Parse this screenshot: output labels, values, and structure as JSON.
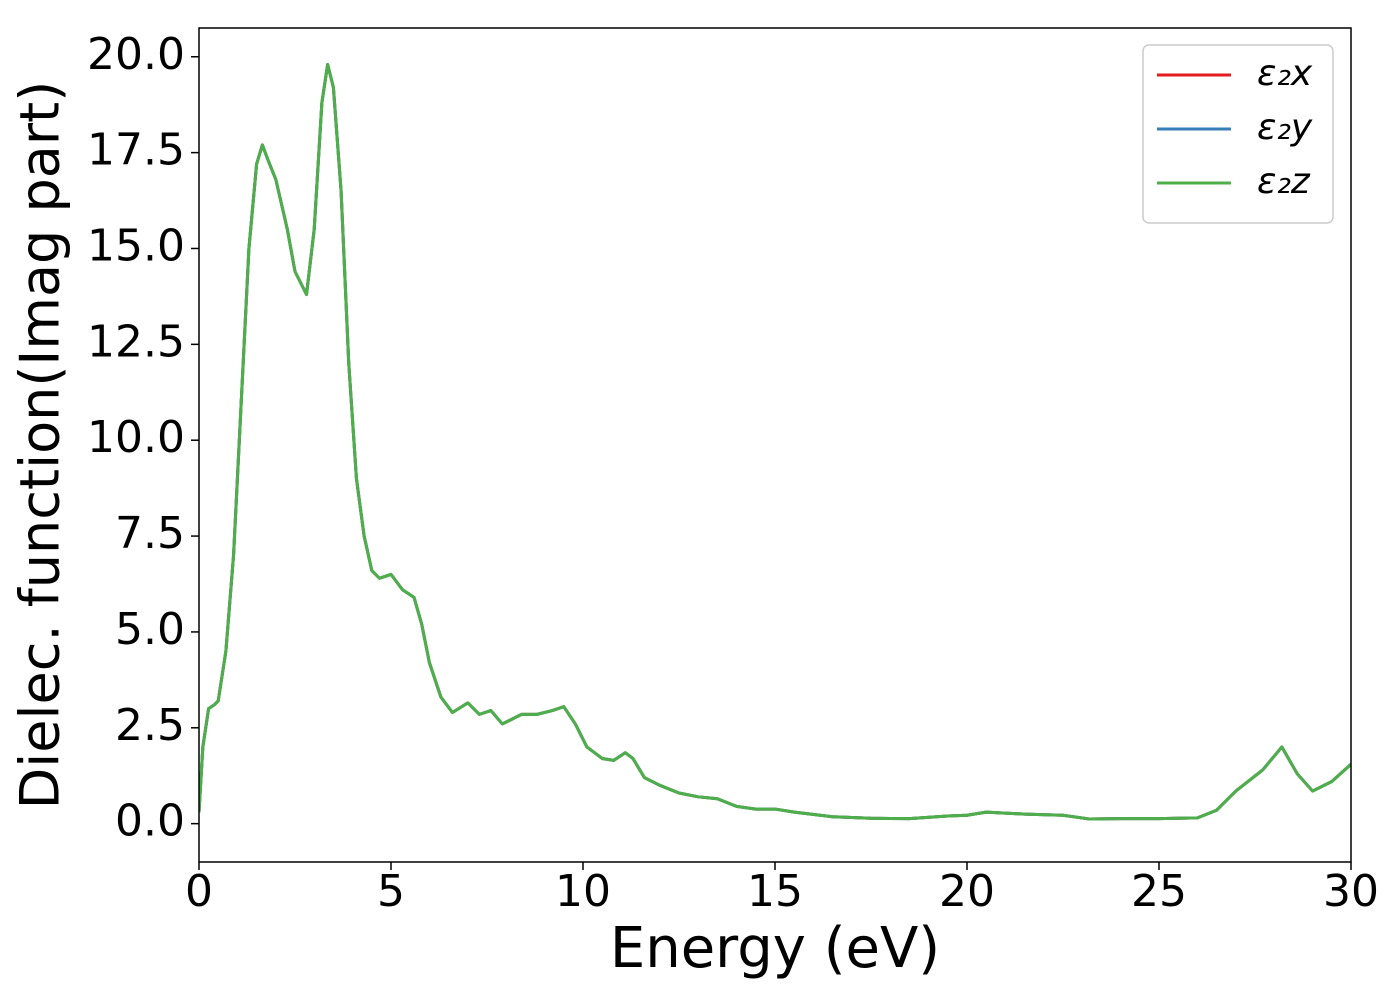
{
  "chart_data": {
    "type": "line",
    "xlabel": "Energy (eV)",
    "ylabel": "Dielec. function(Imag part)",
    "x": [
      0,
      0.1,
      0.25,
      0.4,
      0.5,
      0.7,
      0.9,
      1.1,
      1.3,
      1.5,
      1.65,
      1.8,
      2.0,
      2.3,
      2.5,
      2.8,
      3.0,
      3.2,
      3.35,
      3.5,
      3.7,
      3.9,
      4.1,
      4.3,
      4.5,
      4.7,
      5.0,
      5.3,
      5.6,
      5.8,
      6.0,
      6.3,
      6.6,
      7.0,
      7.3,
      7.6,
      7.9,
      8.4,
      8.8,
      9.2,
      9.5,
      9.8,
      10.1,
      10.5,
      10.8,
      11.1,
      11.3,
      11.6,
      12.0,
      12.5,
      13.0,
      13.5,
      14.0,
      14.5,
      15.0,
      15.5,
      16.5,
      17.5,
      18.5,
      19.5,
      20.0,
      20.5,
      21.5,
      22.5,
      23.2,
      24,
      25,
      26,
      26.5,
      27,
      27.7,
      28.2,
      28.6,
      29,
      29.5,
      30
    ],
    "series": [
      {
        "name": "ε₂x",
        "color": "#e41a1c",
        "values": [
          0.3,
          2.0,
          3.0,
          3.1,
          3.2,
          4.5,
          7,
          11,
          15,
          17.2,
          17.7,
          17.3,
          16.8,
          15.5,
          14.4,
          13.8,
          15.5,
          18.8,
          19.8,
          19.2,
          16.5,
          12,
          9,
          7.5,
          6.6,
          6.4,
          6.5,
          6.1,
          5.9,
          5.2,
          4.2,
          3.3,
          2.9,
          3.15,
          2.85,
          2.95,
          2.6,
          2.85,
          2.85,
          2.95,
          3.05,
          2.6,
          2.0,
          1.7,
          1.65,
          1.85,
          1.7,
          1.2,
          1.0,
          0.8,
          0.7,
          0.65,
          0.45,
          0.38,
          0.38,
          0.3,
          0.18,
          0.14,
          0.13,
          0.2,
          0.22,
          0.3,
          0.25,
          0.22,
          0.12,
          0.13,
          0.13,
          0.15,
          0.35,
          0.85,
          1.4,
          2.0,
          1.3,
          0.85,
          1.1,
          1.55
        ]
      },
      {
        "name": "ε₂y",
        "color": "#377eb8",
        "values": [
          0.3,
          2.0,
          3.0,
          3.1,
          3.2,
          4.5,
          7,
          11,
          15,
          17.2,
          17.7,
          17.3,
          16.8,
          15.5,
          14.4,
          13.8,
          15.5,
          18.8,
          19.8,
          19.2,
          16.5,
          12,
          9,
          7.5,
          6.6,
          6.4,
          6.5,
          6.1,
          5.9,
          5.2,
          4.2,
          3.3,
          2.9,
          3.15,
          2.85,
          2.95,
          2.6,
          2.85,
          2.85,
          2.95,
          3.05,
          2.6,
          2.0,
          1.7,
          1.65,
          1.85,
          1.7,
          1.2,
          1.0,
          0.8,
          0.7,
          0.65,
          0.45,
          0.38,
          0.38,
          0.3,
          0.18,
          0.14,
          0.13,
          0.2,
          0.22,
          0.3,
          0.25,
          0.22,
          0.12,
          0.13,
          0.13,
          0.15,
          0.35,
          0.85,
          1.4,
          2.0,
          1.3,
          0.85,
          1.1,
          1.55
        ]
      },
      {
        "name": "ε₂z",
        "color": "#4daf4a",
        "values": [
          0.3,
          2.0,
          3.0,
          3.1,
          3.2,
          4.5,
          7,
          11,
          15,
          17.2,
          17.7,
          17.3,
          16.8,
          15.5,
          14.4,
          13.8,
          15.5,
          18.8,
          19.8,
          19.2,
          16.5,
          12,
          9,
          7.5,
          6.6,
          6.4,
          6.5,
          6.1,
          5.9,
          5.2,
          4.2,
          3.3,
          2.9,
          3.15,
          2.85,
          2.95,
          2.6,
          2.85,
          2.85,
          2.95,
          3.05,
          2.6,
          2.0,
          1.7,
          1.65,
          1.85,
          1.7,
          1.2,
          1.0,
          0.8,
          0.7,
          0.65,
          0.45,
          0.38,
          0.38,
          0.3,
          0.18,
          0.14,
          0.13,
          0.2,
          0.22,
          0.3,
          0.25,
          0.22,
          0.12,
          0.13,
          0.13,
          0.15,
          0.35,
          0.85,
          1.4,
          2.0,
          1.3,
          0.85,
          1.1,
          1.55
        ]
      }
    ],
    "xlim": [
      0,
      30
    ],
    "ylim": [
      -1,
      20.75
    ],
    "xticks": [
      0,
      5,
      10,
      15,
      20,
      25,
      30
    ],
    "yticks": [
      {
        "value": 0,
        "label": "0.0"
      },
      {
        "value": 2.5,
        "label": "2.5"
      },
      {
        "value": 5,
        "label": "5.0"
      },
      {
        "value": 7.5,
        "label": "7.5"
      },
      {
        "value": 10,
        "label": "10.0"
      },
      {
        "value": 12.5,
        "label": "12.5"
      },
      {
        "value": 15,
        "label": "15.0"
      },
      {
        "value": 17.5,
        "label": "17.5"
      },
      {
        "value": 20,
        "label": "20.0"
      }
    ],
    "legend": "upper right",
    "grid": false
  }
}
